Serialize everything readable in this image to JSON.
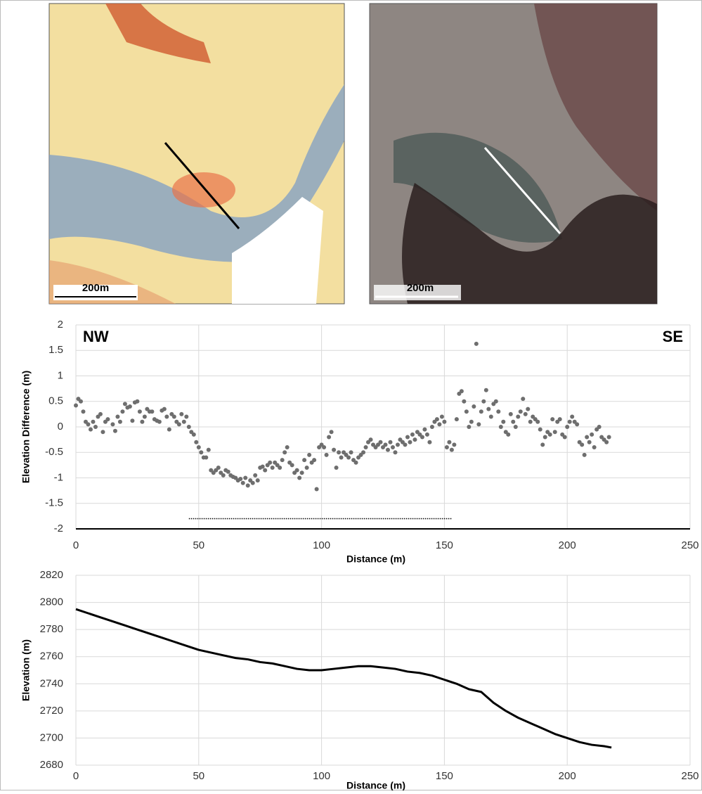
{
  "maps": [
    {
      "scale_label": "200m"
    },
    {
      "scale_label": "200m"
    }
  ],
  "chart_data": [
    {
      "type": "scatter",
      "ylabel": "Elevation Difference (m)",
      "xlabel": "Distance (m)",
      "annotations": [
        "NW",
        "SE"
      ],
      "color": "#6e6e6e",
      "grid": true,
      "xlim": [
        0,
        250
      ],
      "xticks": [
        0,
        50,
        100,
        150,
        200,
        250
      ],
      "ylim": [
        -2,
        2
      ],
      "yticks": [
        -2,
        -1.5,
        -1,
        -0.5,
        0,
        0.5,
        1,
        1.5,
        2
      ],
      "reference_line": {
        "x": [
          46,
          153
        ],
        "y": -1.8
      },
      "x": [
        0,
        1,
        2,
        3,
        4,
        5,
        6,
        7,
        8,
        9,
        10,
        11,
        12,
        13,
        15,
        16,
        17,
        18,
        19,
        20,
        21,
        22,
        23,
        24,
        25,
        26,
        27,
        28,
        29,
        30,
        31,
        32,
        33,
        34,
        35,
        36,
        37,
        38,
        39,
        40,
        41,
        42,
        43,
        44,
        45,
        46,
        47,
        48,
        49,
        50,
        51,
        52,
        53,
        54,
        55,
        56,
        57,
        58,
        59,
        60,
        61,
        62,
        63,
        64,
        65,
        66,
        67,
        68,
        69,
        70,
        71,
        72,
        73,
        74,
        75,
        76,
        77,
        78,
        79,
        80,
        81,
        82,
        83,
        84,
        85,
        86,
        87,
        88,
        89,
        90,
        91,
        92,
        93,
        94,
        95,
        96,
        97,
        98,
        99,
        100,
        101,
        102,
        103,
        104,
        105,
        106,
        107,
        108,
        109,
        110,
        111,
        112,
        113,
        114,
        115,
        116,
        117,
        118,
        119,
        120,
        121,
        122,
        123,
        124,
        125,
        126,
        127,
        128,
        129,
        130,
        131,
        132,
        133,
        134,
        135,
        136,
        137,
        138,
        139,
        140,
        141,
        142,
        143,
        144,
        145,
        146,
        147,
        148,
        149,
        150,
        151,
        152,
        153,
        154,
        155,
        156,
        157,
        158,
        159,
        160,
        161,
        162,
        163,
        164,
        165,
        166,
        167,
        168,
        169,
        170,
        171,
        172,
        173,
        174,
        175,
        176,
        177,
        178,
        179,
        180,
        181,
        182,
        183,
        184,
        185,
        186,
        187,
        188,
        189,
        190,
        191,
        192,
        193,
        194,
        195,
        196,
        197,
        198,
        199,
        200,
        201,
        202,
        203,
        204,
        205,
        206,
        207,
        208,
        209,
        210,
        211,
        212,
        213,
        214,
        215,
        216,
        217
      ],
      "values": [
        0.42,
        0.55,
        0.5,
        0.3,
        0.1,
        0.05,
        -0.05,
        0.1,
        0,
        0.2,
        0.25,
        -0.1,
        0.1,
        0.15,
        0.05,
        -0.08,
        0.2,
        0.1,
        0.3,
        0.45,
        0.38,
        0.4,
        0.12,
        0.48,
        0.5,
        0.3,
        0.1,
        0.2,
        0.35,
        0.3,
        0.3,
        0.15,
        0.12,
        0.1,
        0.32,
        0.35,
        0.2,
        -0.05,
        0.25,
        0.2,
        0.1,
        0.05,
        0.25,
        0.1,
        0.2,
        0,
        -0.1,
        -0.15,
        -0.3,
        -0.4,
        -0.5,
        -0.6,
        -0.6,
        -0.45,
        -0.85,
        -0.9,
        -0.85,
        -0.8,
        -0.9,
        -0.95,
        -0.85,
        -0.88,
        -0.95,
        -0.98,
        -1.0,
        -1.05,
        -1.02,
        -1.1,
        -1.0,
        -1.15,
        -1.05,
        -1.1,
        -0.95,
        -1.05,
        -0.8,
        -0.78,
        -0.85,
        -0.75,
        -0.7,
        -0.8,
        -0.7,
        -0.75,
        -0.8,
        -0.65,
        -0.5,
        -0.4,
        -0.7,
        -0.75,
        -0.9,
        -0.85,
        -1.0,
        -0.9,
        -0.65,
        -0.8,
        -0.55,
        -0.7,
        -0.65,
        -1.22,
        -0.4,
        -0.35,
        -0.4,
        -0.55,
        -0.2,
        -0.1,
        -0.45,
        -0.8,
        -0.5,
        -0.6,
        -0.5,
        -0.55,
        -0.6,
        -0.5,
        -0.65,
        -0.7,
        -0.6,
        -0.55,
        -0.5,
        -0.4,
        -0.3,
        -0.25,
        -0.35,
        -0.4,
        -0.35,
        -0.3,
        -0.4,
        -0.35,
        -0.45,
        -0.3,
        -0.4,
        -0.5,
        -0.35,
        -0.25,
        -0.3,
        -0.35,
        -0.2,
        -0.3,
        -0.15,
        -0.25,
        -0.1,
        -0.15,
        -0.2,
        -0.05,
        -0.15,
        -0.3,
        0,
        0.1,
        0.15,
        0.05,
        0.2,
        0.1,
        -0.4,
        -0.3,
        -0.45,
        -0.35,
        0.15,
        0.65,
        0.7,
        0.5,
        0.3,
        0,
        0.1,
        0.4,
        1.63,
        0.05,
        0.3,
        0.5,
        0.72,
        0.35,
        0.2,
        0.45,
        0.5,
        0.3,
        0,
        0.1,
        -0.1,
        -0.15,
        0.25,
        0.1,
        0,
        0.2,
        0.3,
        0.55,
        0.25,
        0.35,
        0.1,
        0.2,
        0.15,
        0.1,
        -0.05,
        -0.35,
        -0.2,
        -0.1,
        -0.15,
        0.15,
        -0.1,
        0.1,
        0.15,
        -0.15,
        -0.2,
        0,
        0.1,
        0.2,
        0.1,
        0.05,
        -0.3,
        -0.35,
        -0.55,
        -0.2,
        -0.3,
        -0.15,
        -0.4,
        -0.05,
        0,
        -0.2,
        -0.25,
        -0.3,
        -0.2
      ]
    },
    {
      "type": "line",
      "ylabel": "Elevation  (m)",
      "xlabel": "Distance (m)",
      "color": "#000000",
      "grid": true,
      "xlim": [
        0,
        250
      ],
      "xticks": [
        0,
        50,
        100,
        150,
        200,
        250
      ],
      "ylim": [
        2680,
        2820
      ],
      "yticks": [
        2680,
        2700,
        2720,
        2740,
        2760,
        2780,
        2800,
        2820
      ],
      "x": [
        0,
        5,
        10,
        15,
        20,
        25,
        30,
        35,
        40,
        45,
        50,
        55,
        60,
        65,
        70,
        75,
        80,
        85,
        90,
        95,
        100,
        105,
        110,
        115,
        120,
        125,
        130,
        135,
        140,
        145,
        150,
        155,
        160,
        165,
        170,
        175,
        180,
        185,
        190,
        195,
        200,
        205,
        210,
        215,
        218
      ],
      "values": [
        2795,
        2792,
        2789,
        2786,
        2783,
        2780,
        2777,
        2774,
        2771,
        2768,
        2765,
        2763,
        2761,
        2759,
        2758,
        2756,
        2755,
        2753,
        2751,
        2750,
        2750,
        2751,
        2752,
        2753,
        2753,
        2752,
        2751,
        2749,
        2748,
        2746,
        2743,
        2740,
        2736,
        2734,
        2726,
        2720,
        2715,
        2711,
        2707,
        2703,
        2700,
        2697,
        2695,
        2694,
        2693
      ]
    }
  ]
}
